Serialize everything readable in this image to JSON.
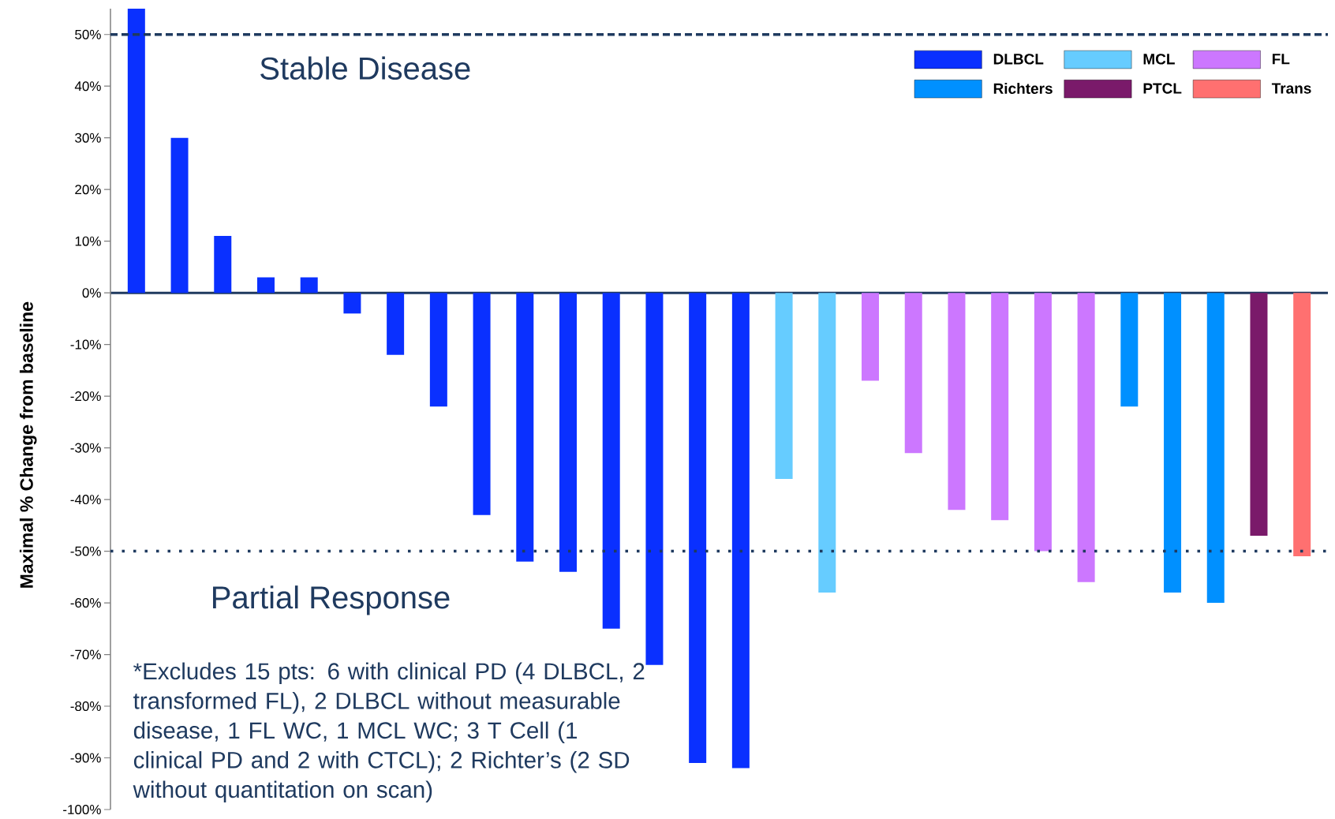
{
  "chart_data": {
    "type": "bar",
    "ylabel": "Maximal % Change from baseline",
    "categories": [
      null,
      null,
      null,
      null,
      null,
      null,
      null,
      null,
      null,
      null,
      null,
      null,
      null,
      null,
      null,
      null,
      null,
      null,
      null,
      null,
      null,
      null,
      null,
      null,
      null,
      null,
      null,
      null
    ],
    "series": [
      {
        "name": "DLBCL",
        "color": "#0a30ff",
        "values": [
          55,
          30,
          11,
          3,
          3,
          -4,
          -12,
          -22,
          -43,
          -52,
          -54,
          -65,
          -72,
          -91,
          -92,
          null,
          null,
          null,
          null,
          null,
          null,
          null,
          null,
          null,
          null,
          null,
          null,
          null
        ]
      },
      {
        "name": "MCL",
        "color": "#66ccff",
        "values": [
          null,
          null,
          null,
          null,
          null,
          null,
          null,
          null,
          null,
          null,
          null,
          null,
          null,
          null,
          null,
          -36,
          -58,
          null,
          null,
          null,
          null,
          null,
          null,
          null,
          null,
          null,
          null,
          null
        ]
      },
      {
        "name": "FL",
        "color": "#cc77ff",
        "values": [
          null,
          null,
          null,
          null,
          null,
          null,
          null,
          null,
          null,
          null,
          null,
          null,
          null,
          null,
          null,
          null,
          null,
          -17,
          -31,
          -42,
          -44,
          -50,
          -56,
          null,
          null,
          null,
          null,
          null
        ]
      },
      {
        "name": "Richters",
        "color": "#0090ff",
        "values": [
          null,
          null,
          null,
          null,
          null,
          null,
          null,
          null,
          null,
          null,
          null,
          null,
          null,
          null,
          null,
          null,
          null,
          null,
          null,
          null,
          null,
          null,
          null,
          -22,
          -58,
          -60,
          null,
          null
        ]
      },
      {
        "name": "PTCL",
        "color": "#7a1a6a",
        "values": [
          null,
          null,
          null,
          null,
          null,
          null,
          null,
          null,
          null,
          null,
          null,
          null,
          null,
          null,
          null,
          null,
          null,
          null,
          null,
          null,
          null,
          null,
          null,
          null,
          null,
          null,
          -47,
          null
        ]
      },
      {
        "name": "Trans",
        "color": "#ff7070",
        "values": [
          null,
          null,
          null,
          null,
          null,
          null,
          null,
          null,
          null,
          null,
          null,
          null,
          null,
          null,
          null,
          null,
          null,
          null,
          null,
          null,
          null,
          null,
          null,
          null,
          null,
          null,
          null,
          -51
        ]
      }
    ],
    "ylim": [
      -100,
      55
    ],
    "yticks": [
      {
        "value": 50,
        "label": "50%"
      },
      {
        "value": 40,
        "label": "40%"
      },
      {
        "value": 30,
        "label": "30%"
      },
      {
        "value": 20,
        "label": "20%"
      },
      {
        "value": 10,
        "label": "10%"
      },
      {
        "value": 0,
        "label": "0%"
      },
      {
        "value": -10,
        "label": "-10%"
      },
      {
        "value": -20,
        "label": "-20%"
      },
      {
        "value": -30,
        "label": "-30%"
      },
      {
        "value": -40,
        "label": "-40%"
      },
      {
        "value": -50,
        "label": "-50%"
      },
      {
        "value": -60,
        "label": "-60%"
      },
      {
        "value": -70,
        "label": "-70%"
      },
      {
        "value": -80,
        "label": "-80%"
      },
      {
        "value": -90,
        "label": "-90%"
      },
      {
        "value": -100,
        "label": "-100%"
      }
    ],
    "ref_lines": [
      {
        "axis": "y",
        "value": 50,
        "color": "#1f3a5f",
        "line_style": "dashed"
      },
      {
        "axis": "y",
        "value": -50,
        "color": "#1f3a5f",
        "line_style": "dotted"
      }
    ],
    "legend": "top right",
    "annotations": [
      "Stable Disease",
      "Partial Response",
      "*Excludes 15 pts: 6 with clinical PD (4 DLBCL, 2 transformed FL), 2 DLBCL without measurable disease, 1 FL WC, 1 MCL WC; 3 T Cell (1 clinical PD and 2 with CTCL); 2 Richter’s (2 SD without quantitation on scan)"
    ]
  }
}
